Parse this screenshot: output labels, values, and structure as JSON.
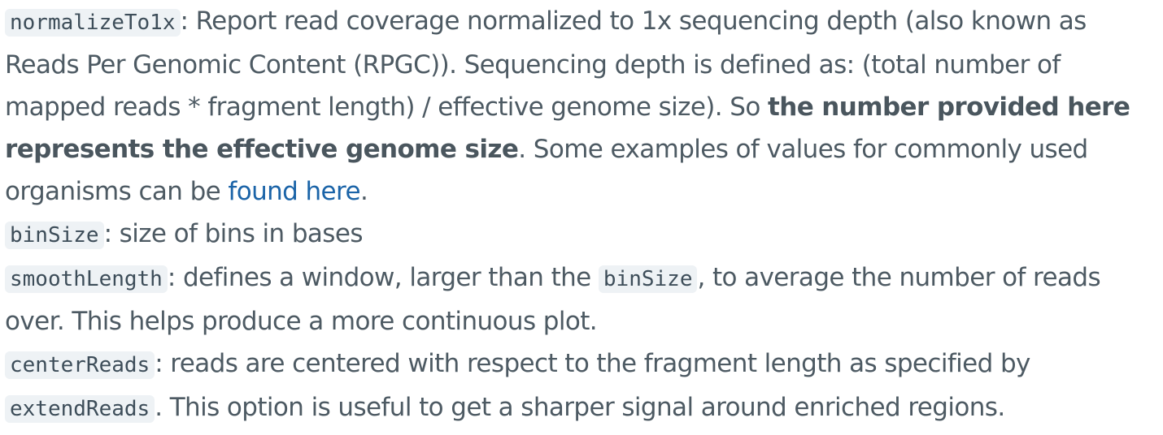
{
  "params": {
    "normalize": {
      "name": "normalizeTo1x",
      "desc_1": ": Report read coverage normalized to 1x sequencing depth (also known as Reads Per Genomic Content (RPGC)). Sequencing depth is defined as: (total number of mapped reads * fragment length) / effective genome size). So ",
      "bold": "the number provided here represents the effective genome size",
      "desc_2": ". Some examples of values for commonly used organisms can be ",
      "link": "found here",
      "desc_3": "."
    },
    "binsize": {
      "name": "binSize",
      "desc": ": size of bins in bases"
    },
    "smooth": {
      "name": "smoothLength",
      "desc_1": ": defines a window, larger than the ",
      "code": "binSize",
      "desc_2": ", to average the number of reads over. This helps produce a more continuous plot."
    },
    "center": {
      "name": "centerReads",
      "desc_1": ": reads are centered with respect to the fragment length as specified by ",
      "code": "extendReads",
      "desc_2": ". This option is useful to get a sharper signal around enriched regions."
    }
  },
  "colors": {
    "text": "#4d5a63",
    "code_bg": "#eef2f5",
    "link": "#1b64a8"
  }
}
